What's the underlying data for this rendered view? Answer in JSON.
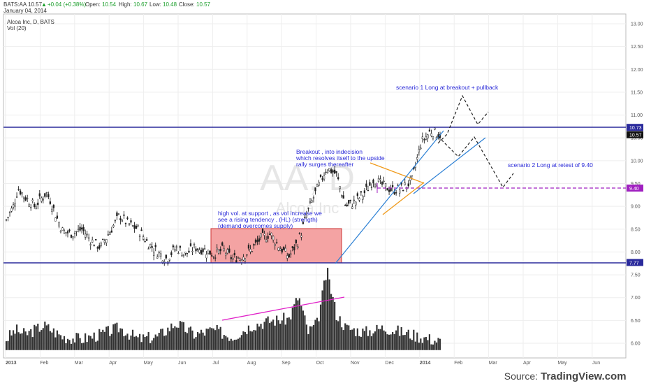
{
  "header": {
    "symbol": "BATS:AA",
    "last": "10.57",
    "up_arrow": "▲",
    "change": "+0.04 (+0.38%)",
    "open_label": "Open:",
    "open": "10.54",
    "high_label": "High:",
    "high": "10.67",
    "low_label": "Low:",
    "low": "10.48",
    "close_label": "Close:",
    "close": "10.57",
    "date": "January 04, 2014",
    "study_title": "Alcoa Inc, D, BATS",
    "volume_study": "Vol (20)"
  },
  "watermark": {
    "ticker": "AA, D",
    "company": "Alcoa Inc"
  },
  "source": {
    "prefix": "Source:",
    "brand": "TradingView.com"
  },
  "chart_data": {
    "type": "candlestick",
    "x_tick_labels": [
      "2013",
      "Feb",
      "Mar",
      "Apr",
      "May",
      "Jun",
      "Jul",
      "Aug",
      "Sep",
      "Oct",
      "Nov",
      "Dec",
      "2014",
      "Feb",
      "Mar",
      "Apr",
      "May",
      "Jun"
    ],
    "y_tick_labels": [
      "13.00",
      "12.50",
      "12.00",
      "11.50",
      "11.00",
      "10.50",
      "10.00",
      "9.50",
      "9.00",
      "8.50",
      "8.00",
      "7.50",
      "7.00",
      "6.50",
      "6.00"
    ],
    "ylim": [
      5.8,
      13.2
    ],
    "grid": true,
    "price_badges": [
      {
        "label": "10.73",
        "value": 10.73,
        "color": "#2a2a9c"
      },
      {
        "label": "10.57",
        "value": 10.57,
        "color": "#111111"
      },
      {
        "label": "9.40",
        "value": 9.4,
        "color": "#a020c0"
      },
      {
        "label": "7.77",
        "value": 7.77,
        "color": "#2a2a9c"
      }
    ],
    "horizontal_levels": [
      {
        "name": "resistance",
        "value": 10.73,
        "color": "#2a2a9c"
      },
      {
        "name": "support",
        "value": 7.77,
        "color": "#2a2a9c"
      },
      {
        "name": "retest",
        "value": 9.4,
        "color": "#a020c0"
      }
    ],
    "price_series": [
      {
        "t": 0,
        "v": 8.7
      },
      {
        "t": 1.5,
        "v": 9.0
      },
      {
        "t": 2.5,
        "v": 9.4
      },
      {
        "t": 4,
        "v": 9.2
      },
      {
        "t": 6,
        "v": 9.0
      },
      {
        "t": 8.5,
        "v": 9.3
      },
      {
        "t": 9.5,
        "v": 9.1
      },
      {
        "t": 10.5,
        "v": 8.8
      },
      {
        "t": 12,
        "v": 8.45
      },
      {
        "t": 14,
        "v": 8.4
      },
      {
        "t": 16,
        "v": 8.5
      },
      {
        "t": 18,
        "v": 8.25
      },
      {
        "t": 20,
        "v": 8.1
      },
      {
        "t": 22,
        "v": 8.45
      },
      {
        "t": 24,
        "v": 8.8
      },
      {
        "t": 26,
        "v": 8.6
      },
      {
        "t": 28,
        "v": 8.5
      },
      {
        "t": 30,
        "v": 8.2
      },
      {
        "t": 32,
        "v": 8.0
      },
      {
        "t": 34,
        "v": 7.85
      },
      {
        "t": 36,
        "v": 8.1
      },
      {
        "t": 38,
        "v": 7.95
      },
      {
        "t": 40,
        "v": 8.1
      },
      {
        "t": 42,
        "v": 8.05
      },
      {
        "t": 44,
        "v": 7.95
      },
      {
        "t": 46,
        "v": 8.05
      },
      {
        "t": 48,
        "v": 7.85
      },
      {
        "t": 50,
        "v": 7.9
      },
      {
        "t": 52,
        "v": 8.05
      },
      {
        "t": 54,
        "v": 8.3
      },
      {
        "t": 56,
        "v": 8.4
      },
      {
        "t": 58,
        "v": 8.1
      },
      {
        "t": 60,
        "v": 7.9
      },
      {
        "t": 62,
        "v": 8.25
      },
      {
        "t": 64,
        "v": 8.9
      },
      {
        "t": 66,
        "v": 9.4
      },
      {
        "t": 68,
        "v": 9.85
      },
      {
        "t": 70,
        "v": 9.7
      },
      {
        "t": 72,
        "v": 9.0
      },
      {
        "t": 74,
        "v": 9.1
      },
      {
        "t": 76,
        "v": 9.3
      },
      {
        "t": 78,
        "v": 9.6
      },
      {
        "t": 80,
        "v": 9.45
      },
      {
        "t": 82,
        "v": 9.35
      },
      {
        "t": 84,
        "v": 9.4
      },
      {
        "t": 86,
        "v": 9.55
      },
      {
        "t": 88,
        "v": 10.4
      },
      {
        "t": 90,
        "v": 10.65
      },
      {
        "t": 92,
        "v": 10.57
      }
    ],
    "volume_series": [
      {
        "t": 0,
        "v": 6.05
      },
      {
        "t": 2,
        "v": 6.25
      },
      {
        "t": 4,
        "v": 6.15
      },
      {
        "t": 8,
        "v": 6.35
      },
      {
        "t": 12,
        "v": 6.1
      },
      {
        "t": 16,
        "v": 6.05
      },
      {
        "t": 20,
        "v": 6.15
      },
      {
        "t": 24,
        "v": 6.3
      },
      {
        "t": 28,
        "v": 6.05
      },
      {
        "t": 32,
        "v": 6.1
      },
      {
        "t": 36,
        "v": 6.4
      },
      {
        "t": 40,
        "v": 6.15
      },
      {
        "t": 44,
        "v": 6.25
      },
      {
        "t": 48,
        "v": 6.1
      },
      {
        "t": 52,
        "v": 6.35
      },
      {
        "t": 56,
        "v": 6.45
      },
      {
        "t": 60,
        "v": 6.5
      },
      {
        "t": 62,
        "v": 7.0
      },
      {
        "t": 64,
        "v": 6.2
      },
      {
        "t": 66,
        "v": 6.4
      },
      {
        "t": 68,
        "v": 7.55
      },
      {
        "t": 70,
        "v": 6.6
      },
      {
        "t": 72,
        "v": 6.3
      },
      {
        "t": 76,
        "v": 6.2
      },
      {
        "t": 80,
        "v": 6.3
      },
      {
        "t": 84,
        "v": 6.2
      },
      {
        "t": 88,
        "v": 6.1
      },
      {
        "t": 92,
        "v": 6.0
      }
    ],
    "annotations": [
      {
        "lines": [
          "scenario 1 Long at breakout + pullback"
        ]
      },
      {
        "lines": [
          "scenario 2 Long at  retest of 9.40"
        ]
      },
      {
        "lines": [
          "Breakout , into indecision",
          "which resolves itself to the upside",
          "rally surges thereafter"
        ]
      },
      {
        "lines": [
          "high vol. at support , as vol increase we",
          "see a rising tendency , (HL) (strength)",
          "(demand overcomes supply)"
        ]
      }
    ]
  }
}
